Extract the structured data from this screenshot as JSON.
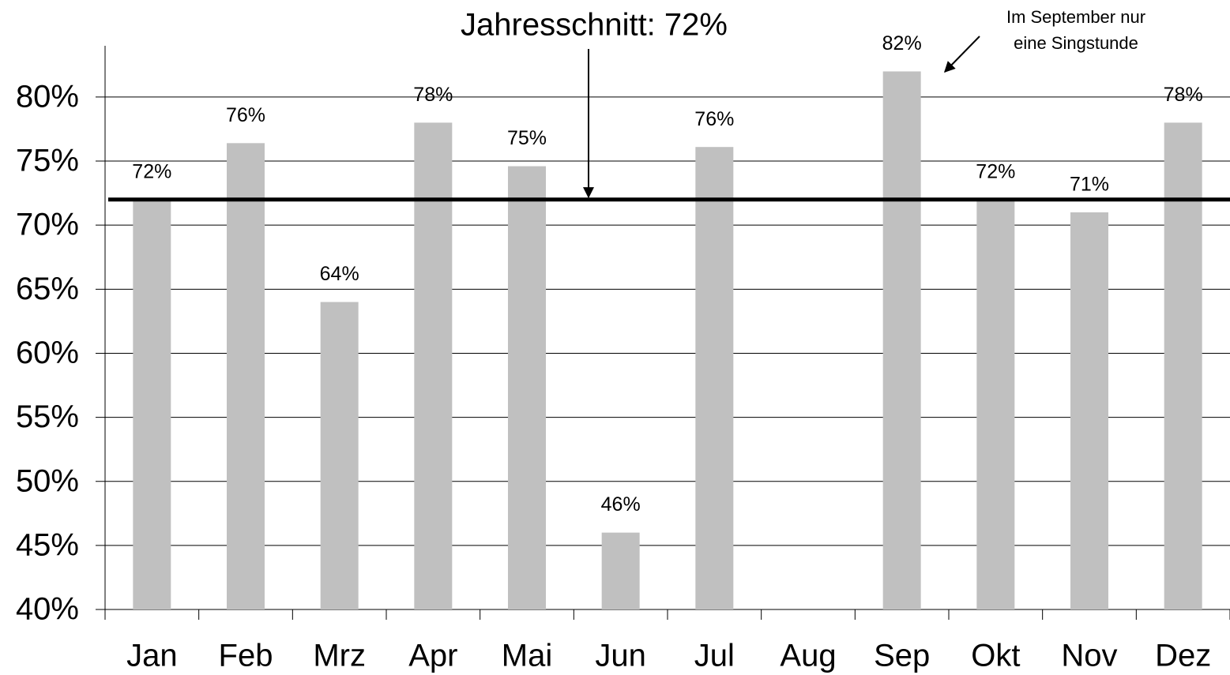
{
  "chart_data": {
    "type": "bar",
    "categories": [
      "Jan",
      "Feb",
      "Mrz",
      "Apr",
      "Mai",
      "Jun",
      "Jul",
      "Aug",
      "Sep",
      "Okt",
      "Nov",
      "Dez"
    ],
    "values": [
      72,
      76.4,
      64,
      78,
      74.6,
      46,
      76.1,
      null,
      82,
      72,
      71,
      78
    ],
    "value_labels": [
      "72%",
      "76%",
      "64%",
      "78%",
      "75%",
      "46%",
      "76%",
      null,
      "82%",
      "72%",
      "71%",
      "78%"
    ],
    "color": "#c0c0c0",
    "ylim": [
      40,
      84
    ],
    "yticks": [
      {
        "value": 40,
        "label": "40%"
      },
      {
        "value": 45,
        "label": "45%"
      },
      {
        "value": 50,
        "label": "50%"
      },
      {
        "value": 55,
        "label": "55%"
      },
      {
        "value": 60,
        "label": "60%"
      },
      {
        "value": 65,
        "label": "65%"
      },
      {
        "value": 70,
        "label": "70%"
      },
      {
        "value": 75,
        "label": "75%"
      },
      {
        "value": 80,
        "label": "80%"
      }
    ],
    "grid": true,
    "average_line": 72,
    "average_label": "Jahresschnitt: 72%",
    "note": [
      "Im September nur",
      "eine Singstunde"
    ]
  }
}
